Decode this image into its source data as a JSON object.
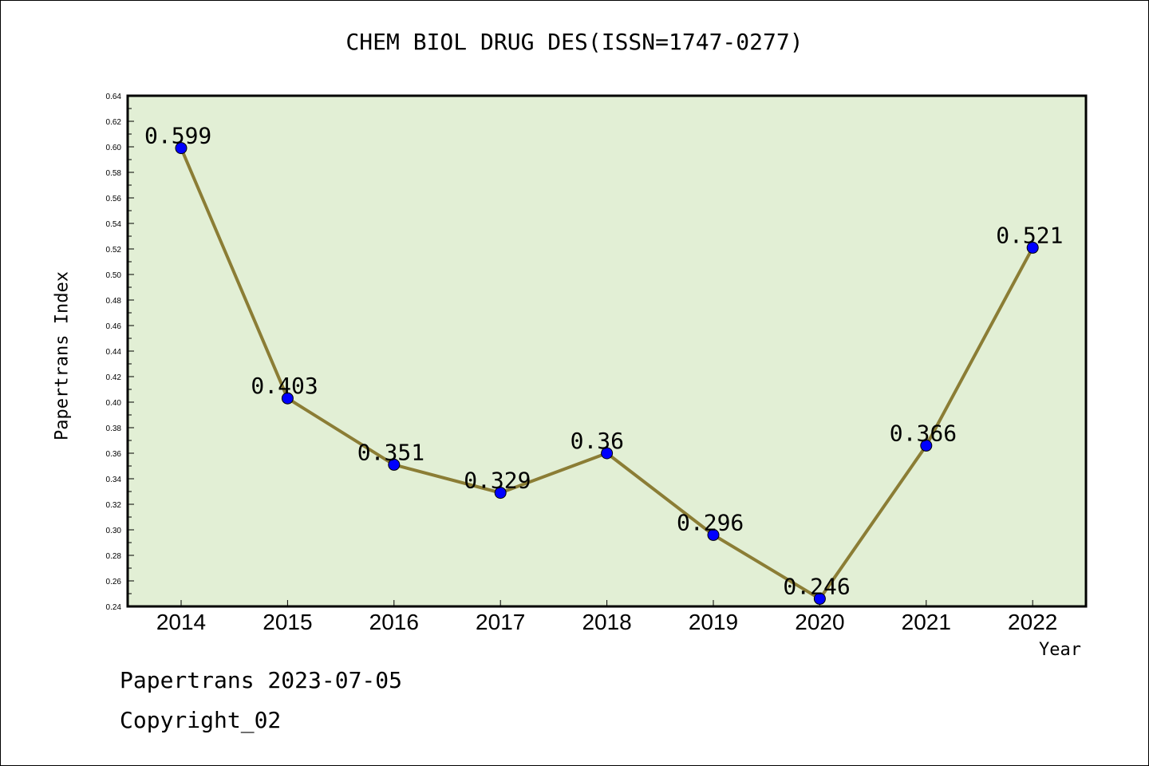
{
  "chart_data": {
    "type": "line",
    "title": "CHEM BIOL DRUG DES(ISSN=1747-0277)",
    "xlabel": "Year",
    "ylabel": "Papertrans Index",
    "categories": [
      "2014",
      "2015",
      "2016",
      "2017",
      "2018",
      "2019",
      "2020",
      "2021",
      "2022"
    ],
    "values": [
      0.599,
      0.403,
      0.351,
      0.329,
      0.36,
      0.296,
      0.246,
      0.366,
      0.521
    ],
    "data_labels": [
      "0.599",
      "0.403",
      "0.351",
      "0.329",
      "0.36",
      "0.296",
      "0.246",
      "0.366",
      "0.521"
    ],
    "ylim": [
      0.24,
      0.64
    ],
    "y_ticks": [
      "0.24",
      "0.26",
      "0.28",
      "0.30",
      "0.32",
      "0.34",
      "0.36",
      "0.38",
      "0.40",
      "0.42",
      "0.44",
      "0.46",
      "0.48",
      "0.50",
      "0.52",
      "0.54",
      "0.56",
      "0.58",
      "0.60",
      "0.62",
      "0.64"
    ],
    "grid": false,
    "legend": "none",
    "colors": {
      "plot_background": "#e2efd5",
      "line": "#8b7d35",
      "marker": "#0000ff"
    }
  },
  "footer": {
    "line1": "Papertrans 2023-07-05",
    "line2": "Copyright_02"
  }
}
